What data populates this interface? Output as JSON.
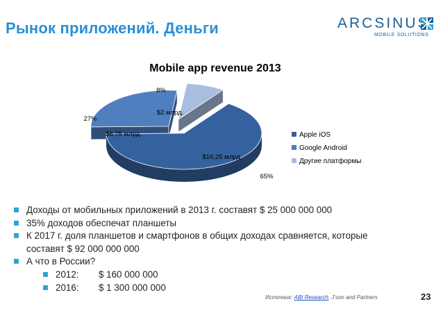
{
  "header": {
    "title": "Рынок приложений. Деньги",
    "logo_text": "ARCSINUS",
    "logo_subtext": "MOBILE SOLUTIONS"
  },
  "chart_data": {
    "type": "pie",
    "title": "Mobile app revenue 2013",
    "categories": [
      "Apple iOS",
      "Google Android",
      "Другие платформы"
    ],
    "values": [
      65,
      27,
      8
    ],
    "value_labels": [
      "$16,25 млрд.",
      "$6,75 млрд.",
      "$2 млрд."
    ],
    "percent_labels": [
      "65%",
      "27%",
      "8%"
    ],
    "colors": [
      "#35629e",
      "#4f7fbf",
      "#a9bddf"
    ],
    "exploded": true,
    "three_d": true,
    "legend_position": "right"
  },
  "bullets": [
    "Доходы от мобильных приложений в 2013 г. составят $ 25 000 000 000",
    "35% доходов обеспечат планшеты",
    "К 2017 г. доля планшетов и смартфонов в общих доходах сравняется, которые составят $ 92 000 000 000",
    "А что в России?"
  ],
  "sub_bullets": [
    {
      "year": "2012:",
      "value": "$ 160 000 000"
    },
    {
      "year": "2016:",
      "value": "$ 1 300 000 000"
    }
  ],
  "footer": {
    "source_prefix": "Источник: ",
    "source_link": "ABI Research",
    "source_suffix": ", J'son and Partners",
    "page_number": "23"
  }
}
